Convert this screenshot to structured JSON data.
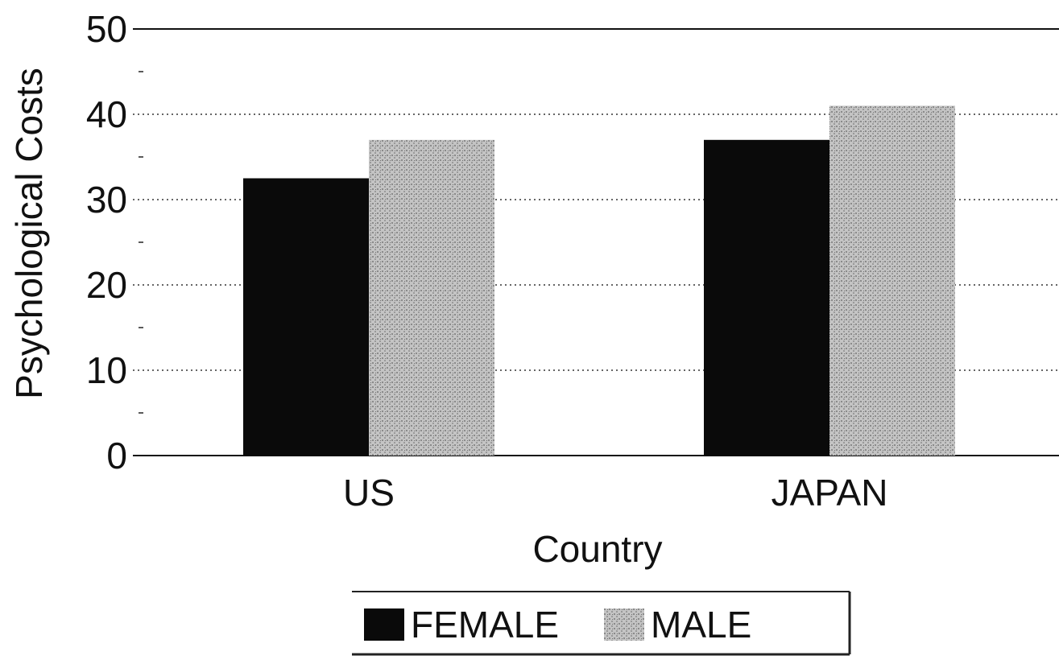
{
  "chart_data": {
    "type": "bar",
    "categories": [
      "US",
      "JAPAN"
    ],
    "series": [
      {
        "name": "FEMALE",
        "values": [
          32.5,
          37
        ],
        "color": "#0a0a0a"
      },
      {
        "name": "MALE",
        "values": [
          37,
          41
        ],
        "color": "#b8b8b8"
      }
    ],
    "yticks": [
      "0",
      "10",
      "20",
      "30",
      "40",
      "50"
    ],
    "ylim": [
      0,
      50
    ],
    "xlabel": "Country",
    "ylabel": "Psychological Costs",
    "grid": true,
    "legend_position": "bottom"
  }
}
